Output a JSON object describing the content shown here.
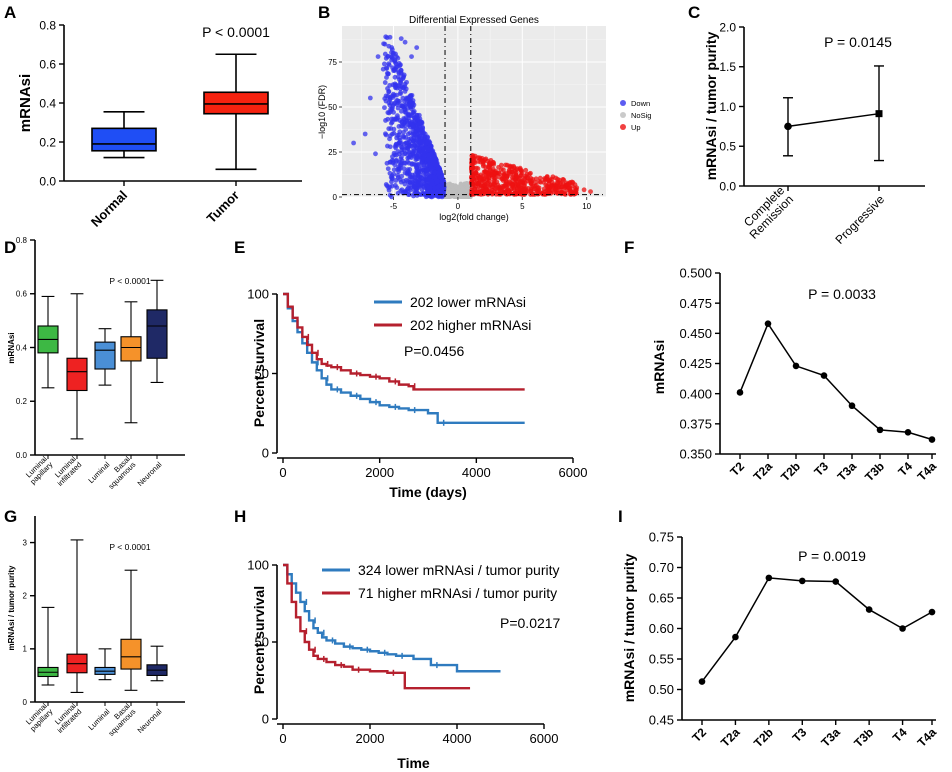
{
  "colors": {
    "normal": "#1f4ef5",
    "tumor": "#f5220f",
    "down": "#3333ee",
    "nosig": "#bdbdbd",
    "up": "#ee1111",
    "grid_bg": "#ebebeb",
    "green": "#3db844",
    "red": "#ee2222",
    "blue": "#4a8fd6",
    "orange": "#f5922a",
    "navy": "#1f2966",
    "km_low": "#2f7bbf",
    "km_high": "#b5202e"
  },
  "chart_data": [
    {
      "id": "A",
      "type": "box",
      "panel_label": "A",
      "ylabel": "mRNAsi",
      "ylim": [
        0,
        0.8
      ],
      "yticks": [
        "0.0",
        "0.2",
        "0.4",
        "0.6",
        "0.8"
      ],
      "categories": [
        "Normal",
        "Tumor"
      ],
      "boxes": [
        {
          "min": 0.12,
          "q1": 0.155,
          "median": 0.19,
          "q3": 0.27,
          "max": 0.355
        },
        {
          "min": 0.06,
          "q1": 0.345,
          "median": 0.395,
          "q3": 0.455,
          "max": 0.65
        }
      ],
      "annotation": "P < 0.0001"
    },
    {
      "id": "B",
      "type": "scatter",
      "panel_label": "B",
      "title": "Differential Expressed Genes",
      "xlabel": "log2(fold change)",
      "ylabel": "−log10 (FDR)",
      "xlim": [
        -9,
        11.5
      ],
      "ylim": [
        0,
        95
      ],
      "xticks": [
        "-5",
        "0",
        "5",
        "10"
      ],
      "yticks": [
        "0",
        "25",
        "50",
        "75"
      ],
      "thresholds": {
        "x": [
          -1,
          1
        ],
        "y": 1.3
      },
      "legend": [
        "Down",
        "NoSig",
        "Up"
      ],
      "groups": [
        {
          "name": "Down",
          "x_range": [
            -8.5,
            -1
          ],
          "y_peak": 90,
          "n": 1900
        },
        {
          "name": "NoSig",
          "x_range": [
            -1,
            1
          ],
          "y_peak": 8,
          "n": 600
        },
        {
          "name": "Up",
          "x_range": [
            1,
            10.5
          ],
          "y_peak": 25,
          "n": 900
        }
      ]
    },
    {
      "id": "C",
      "type": "errorbar",
      "panel_label": "C",
      "ylabel": "mRNAsi / tumor purity",
      "ylim": [
        0,
        2.0
      ],
      "yticks": [
        "0.0",
        "0.5",
        "1.0",
        "1.5",
        "2.0"
      ],
      "categories": [
        "Complete Remission",
        "Progressive"
      ],
      "tick_lines": [
        [
          "Complete",
          "Remission"
        ],
        [
          "Progressive"
        ]
      ],
      "means": [
        0.75,
        0.91
      ],
      "low": [
        0.38,
        0.32
      ],
      "high": [
        1.11,
        1.51
      ],
      "annotation": "P = 0.0145"
    },
    {
      "id": "D",
      "type": "box",
      "panel_label": "D",
      "ylabel": "mRNAsi",
      "ylim": [
        0,
        0.8
      ],
      "yticks": [
        "0.0",
        "0.2",
        "0.4",
        "0.6",
        "0.8"
      ],
      "categories": [
        "Luminal papillary",
        "Luminal infiltrated",
        "Luminal",
        "Basal squamous",
        "Neuronal"
      ],
      "tick_lines": [
        [
          "Luminal",
          "papillary"
        ],
        [
          "Luminal",
          "infiltrated"
        ],
        [
          "Luminal"
        ],
        [
          "Basal",
          "squamous"
        ],
        [
          "Neuronal"
        ]
      ],
      "boxes": [
        {
          "min": 0.25,
          "q1": 0.38,
          "median": 0.43,
          "q3": 0.48,
          "max": 0.59
        },
        {
          "min": 0.06,
          "q1": 0.24,
          "median": 0.31,
          "q3": 0.36,
          "max": 0.6
        },
        {
          "min": 0.26,
          "q1": 0.32,
          "median": 0.39,
          "q3": 0.42,
          "max": 0.47
        },
        {
          "min": 0.12,
          "q1": 0.35,
          "median": 0.4,
          "q3": 0.44,
          "max": 0.57
        },
        {
          "min": 0.27,
          "q1": 0.36,
          "median": 0.48,
          "q3": 0.54,
          "max": 0.65
        }
      ],
      "annotation": "P < 0.0001"
    },
    {
      "id": "E",
      "type": "line",
      "subtype": "kaplan-meier",
      "panel_label": "E",
      "xlabel": "Time (days)",
      "ylabel": "Percent survival",
      "xlim": [
        0,
        6000
      ],
      "ylim": [
        0,
        100
      ],
      "xticks": [
        "0",
        "2000",
        "4000",
        "6000"
      ],
      "yticks": [
        "0",
        "50",
        "100"
      ],
      "series": [
        {
          "name": "202 lower mRNAsi",
          "x": [
            0,
            100,
            200,
            300,
            400,
            500,
            600,
            700,
            800,
            900,
            1000,
            1200,
            1400,
            1600,
            1800,
            2000,
            2200,
            2400,
            2600,
            3000,
            3200,
            3400,
            5000
          ],
          "y": [
            100,
            91,
            83,
            76,
            69,
            63,
            57,
            52,
            47,
            43,
            40,
            38,
            36,
            34,
            32,
            30,
            29,
            28,
            27,
            25,
            19,
            19,
            19
          ]
        },
        {
          "name": "202 higher mRNAsi",
          "x": [
            0,
            100,
            200,
            300,
            400,
            500,
            600,
            700,
            800,
            900,
            1000,
            1200,
            1400,
            1600,
            1800,
            2000,
            2200,
            2400,
            2600,
            2700,
            5000
          ],
          "y": [
            100,
            92,
            85,
            79,
            73,
            68,
            63,
            59,
            56,
            55,
            54,
            52,
            50,
            49,
            48,
            47,
            45,
            43,
            42,
            40,
            40
          ]
        }
      ],
      "annotation": "P=0.0456"
    },
    {
      "id": "F",
      "type": "line",
      "panel_label": "F",
      "ylabel": "mRNAsi",
      "ylim": [
        0.35,
        0.5
      ],
      "yticks": [
        "0.350",
        "0.375",
        "0.400",
        "0.425",
        "0.450",
        "0.475",
        "0.500"
      ],
      "categories": [
        "T2",
        "T2a",
        "T2b",
        "T3",
        "T3a",
        "T3b",
        "T4",
        "T4a"
      ],
      "values": [
        0.401,
        0.458,
        0.423,
        0.415,
        0.39,
        0.37,
        0.368,
        0.362
      ],
      "annotation": "P = 0.0033"
    },
    {
      "id": "G",
      "type": "box",
      "panel_label": "G",
      "ylabel": "mRNAsi / tumor purity",
      "ylim": [
        0,
        3.5
      ],
      "yticks": [
        "0",
        "1",
        "2",
        "3"
      ],
      "categories": [
        "Luminal papillary",
        "Luminal infiltrated",
        "Luminal",
        "Basal squamous",
        "Neuronal"
      ],
      "tick_lines": [
        [
          "Luminal",
          "papillary"
        ],
        [
          "Luminal",
          "infiltrated"
        ],
        [
          "Luminal"
        ],
        [
          "Basal",
          "squamous"
        ],
        [
          "Neuronal"
        ]
      ],
      "boxes": [
        {
          "min": 0.32,
          "q1": 0.48,
          "median": 0.56,
          "q3": 0.65,
          "max": 1.78
        },
        {
          "min": 0.18,
          "q1": 0.55,
          "median": 0.72,
          "q3": 0.9,
          "max": 3.05
        },
        {
          "min": 0.42,
          "q1": 0.52,
          "median": 0.58,
          "q3": 0.65,
          "max": 1.0
        },
        {
          "min": 0.22,
          "q1": 0.62,
          "median": 0.85,
          "q3": 1.18,
          "max": 2.48
        },
        {
          "min": 0.4,
          "q1": 0.5,
          "median": 0.6,
          "q3": 0.7,
          "max": 1.05
        }
      ],
      "annotation": "P < 0.0001"
    },
    {
      "id": "H",
      "type": "line",
      "subtype": "kaplan-meier",
      "panel_label": "H",
      "xlabel": "Time",
      "ylabel": "Percent survival",
      "xlim": [
        0,
        6000
      ],
      "ylim": [
        0,
        100
      ],
      "xticks": [
        "0",
        "2000",
        "4000",
        "6000"
      ],
      "yticks": [
        "0",
        "50",
        "100"
      ],
      "series": [
        {
          "name": "324 lower mRNAsi / tumor purity",
          "x": [
            0,
            100,
            200,
            300,
            400,
            500,
            600,
            700,
            800,
            900,
            1000,
            1200,
            1400,
            1600,
            1800,
            2000,
            2200,
            2400,
            2600,
            3000,
            3400,
            4000,
            5000
          ],
          "y": [
            100,
            94,
            88,
            82,
            76,
            70,
            64,
            59,
            56,
            53,
            51,
            49,
            47,
            46,
            45,
            44,
            43,
            42,
            41,
            39,
            35,
            31,
            31
          ]
        },
        {
          "name": "71 higher mRNAsi / tumor purity",
          "x": [
            0,
            100,
            200,
            300,
            400,
            500,
            600,
            700,
            800,
            1000,
            1200,
            1400,
            1600,
            2000,
            2400,
            2800,
            4300
          ],
          "y": [
            100,
            88,
            76,
            66,
            57,
            50,
            45,
            41,
            39,
            37,
            35,
            34,
            32,
            31,
            30,
            20,
            20
          ]
        }
      ],
      "annotation": "P=0.0217"
    },
    {
      "id": "I",
      "type": "line",
      "panel_label": "I",
      "ylabel": "mRNAsi / tumor purity",
      "ylim": [
        0.45,
        0.75
      ],
      "yticks": [
        "0.45",
        "0.50",
        "0.55",
        "0.60",
        "0.65",
        "0.70",
        "0.75"
      ],
      "categories": [
        "T2",
        "T2a",
        "T2b",
        "T3",
        "T3a",
        "T3b",
        "T4",
        "T4a"
      ],
      "values": [
        0.513,
        0.586,
        0.683,
        0.678,
        0.677,
        0.631,
        0.6,
        0.627
      ],
      "annotation": "P = 0.0019"
    }
  ]
}
